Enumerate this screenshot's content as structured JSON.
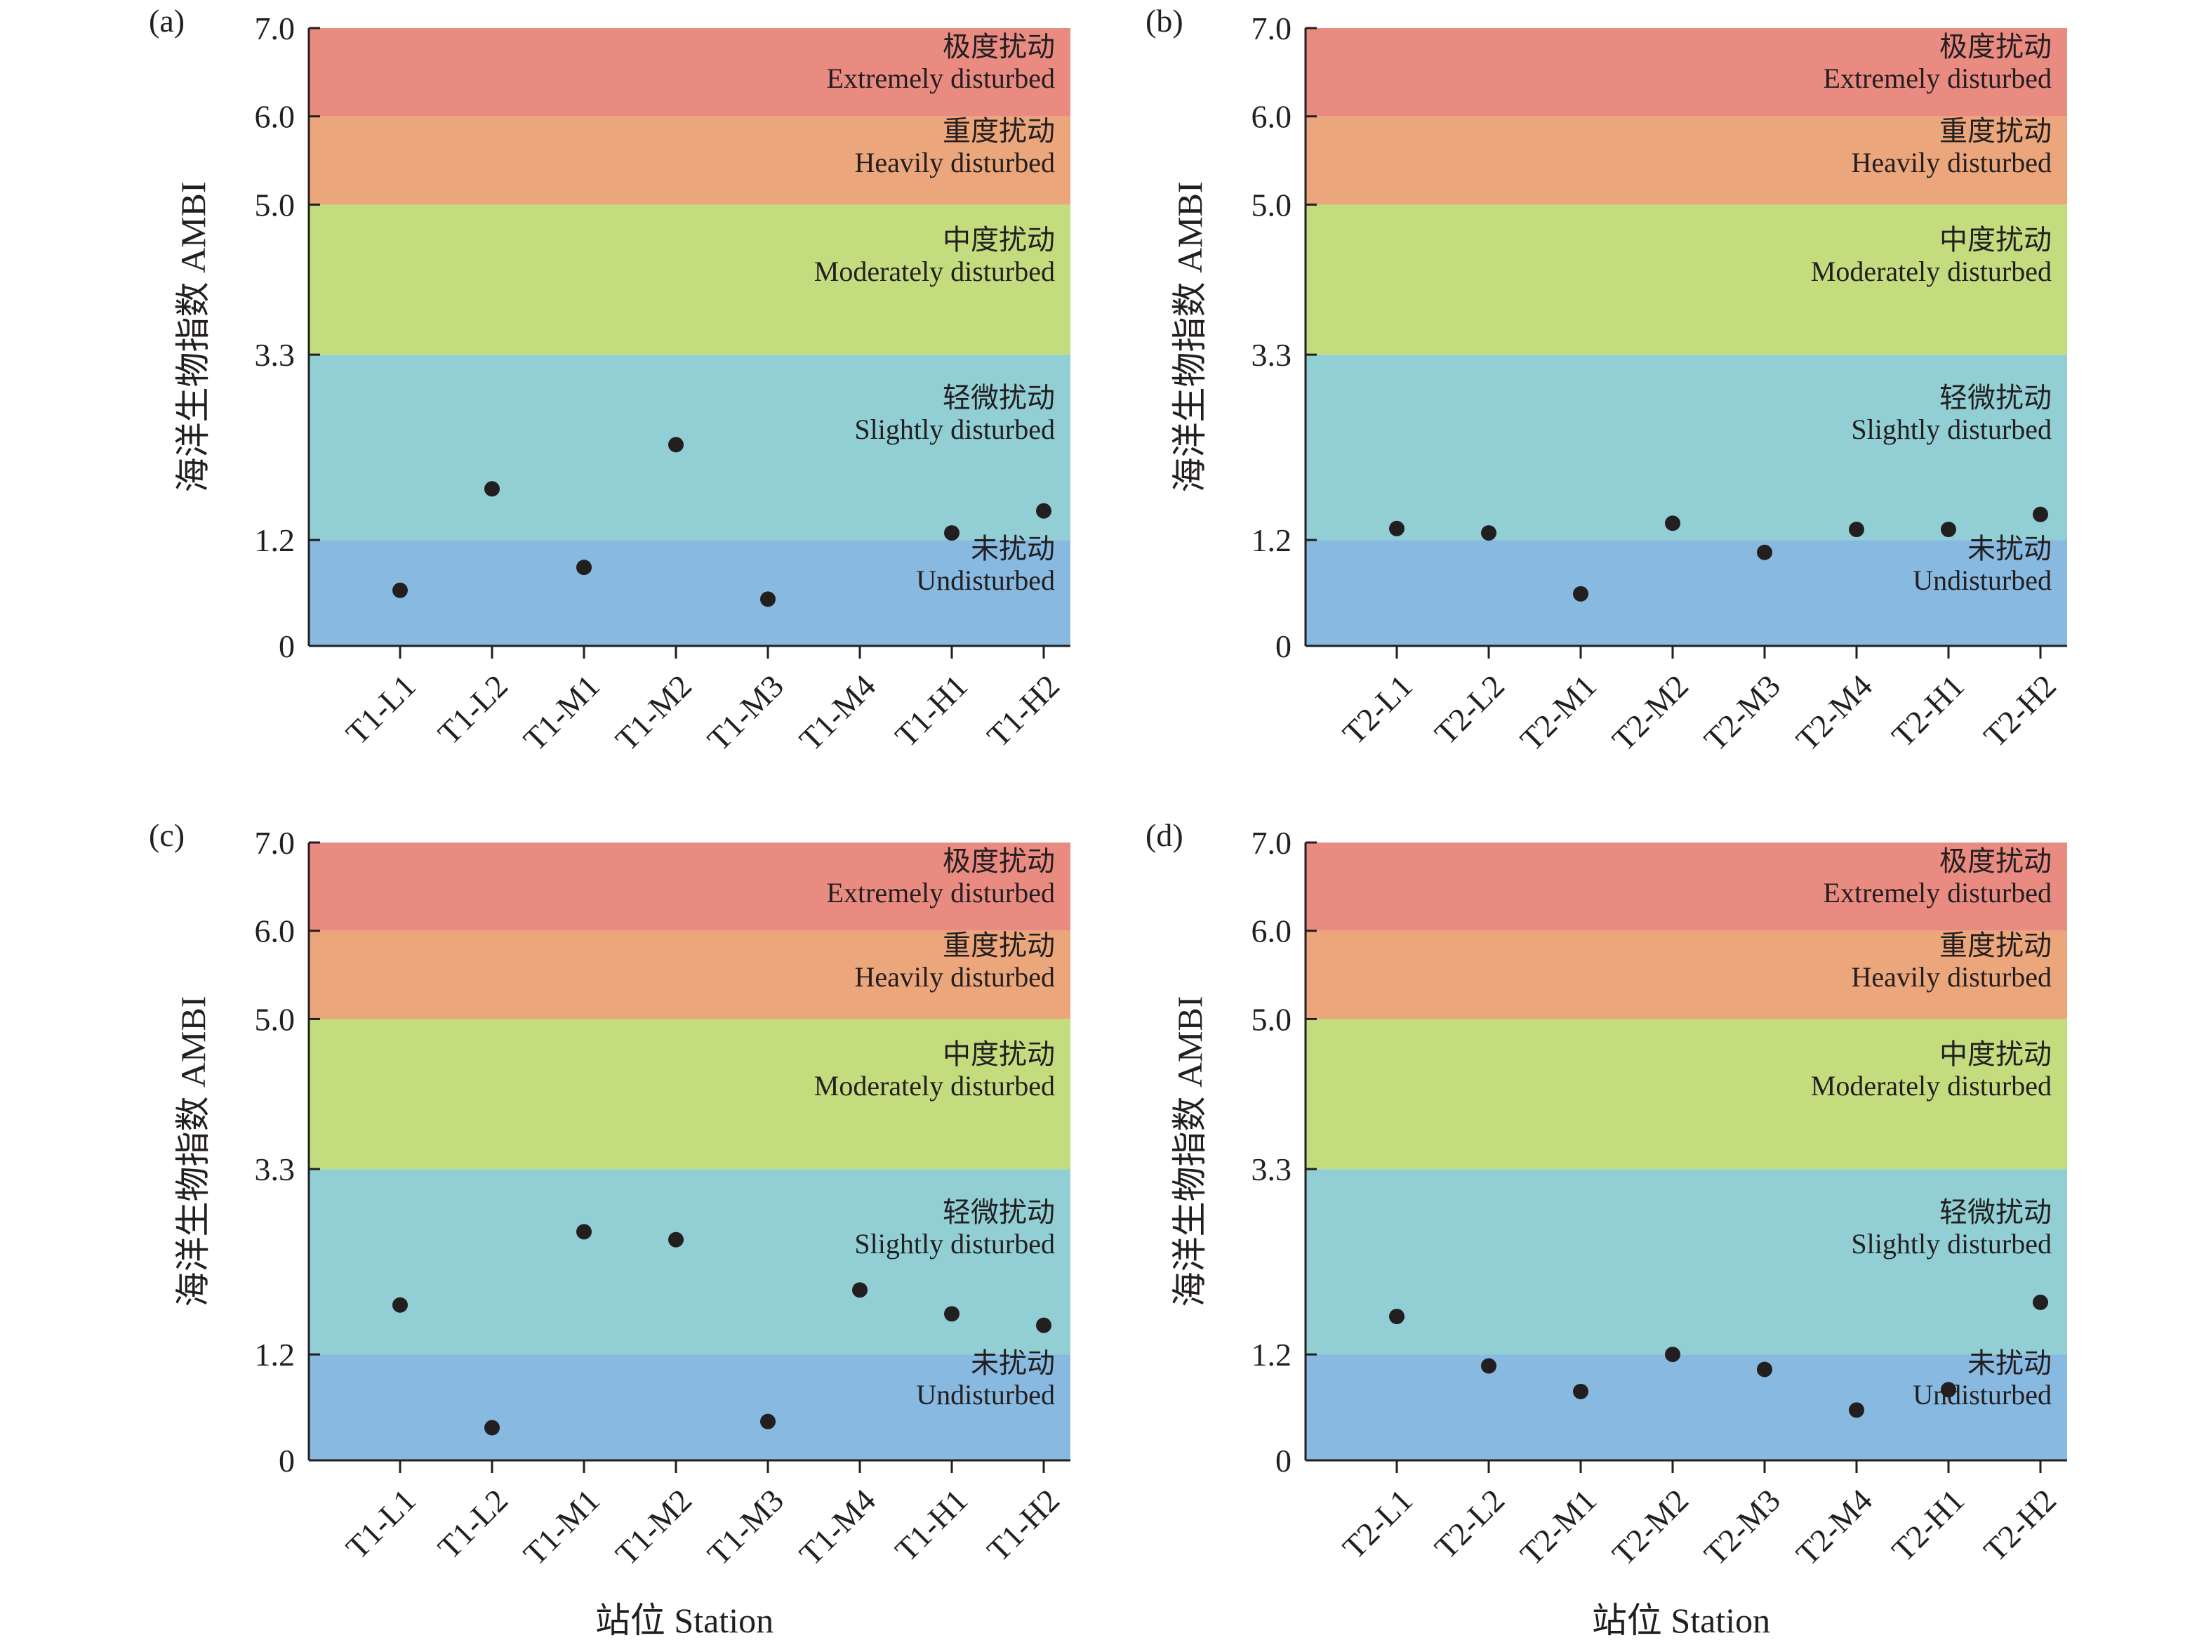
{
  "figure": {
    "y_axis_title": "海洋生物指数 AMBI",
    "x_axis_title": "站位 Station"
  },
  "zones": [
    {
      "key": "undisturbed",
      "from": 0,
      "to": 1.2,
      "cn": "未扰动",
      "en": "Undisturbed",
      "color": "#88b9e0"
    },
    {
      "key": "slightly",
      "from": 1.2,
      "to": 3.3,
      "cn": "轻微扰动",
      "en": "Slightly disturbed",
      "color": "#92cfd5"
    },
    {
      "key": "moderately",
      "from": 3.3,
      "to": 5.0,
      "cn": "中度扰动",
      "en": "Moderately disturbed",
      "color": "#c3dd7e"
    },
    {
      "key": "heavily",
      "from": 5.0,
      "to": 6.0,
      "cn": "重度扰动",
      "en": "Heavily disturbed",
      "color": "#eca67b"
    },
    {
      "key": "extremely",
      "from": 6.0,
      "to": 7.0,
      "cn": "极度扰动",
      "en": "Extremely disturbed",
      "color": "#ea8b82"
    }
  ],
  "chart_data": [
    {
      "type": "scatter",
      "panel": "(a)",
      "ylabel": "海洋生物指数 AMBI",
      "xlabel": "",
      "ylim": [
        0,
        7
      ],
      "yticks": [
        "0",
        "1.2",
        "3.3",
        "5.0",
        "6.0",
        "7.0"
      ],
      "categories": [
        "T1-L1",
        "T1-L2",
        "T1-M1",
        "T1-M2",
        "T1-M3",
        "T1-M4",
        "T1-H1",
        "T1-H2"
      ],
      "values": [
        0.63,
        1.78,
        0.89,
        2.28,
        0.53,
        null,
        1.28,
        1.53
      ]
    },
    {
      "type": "scatter",
      "panel": "(b)",
      "ylabel": "海洋生物指数 AMBI",
      "xlabel": "",
      "ylim": [
        0,
        7
      ],
      "yticks": [
        "0",
        "1.2",
        "3.3",
        "5.0",
        "6.0",
        "7.0"
      ],
      "categories": [
        "T2-L1",
        "T2-L2",
        "T2-M1",
        "T2-M2",
        "T2-M3",
        "T2-M4",
        "T2-H1",
        "T2-H2"
      ],
      "values": [
        1.33,
        1.28,
        0.59,
        1.39,
        1.06,
        1.32,
        1.32,
        1.49
      ]
    },
    {
      "type": "scatter",
      "panel": "(c)",
      "ylabel": "海洋生物指数 AMBI",
      "xlabel": "站位 Station",
      "ylim": [
        0,
        7
      ],
      "yticks": [
        "0",
        "1.2",
        "3.3",
        "5.0",
        "6.0",
        "7.0"
      ],
      "categories": [
        "T1-L1",
        "T1-L2",
        "T1-M1",
        "T1-M2",
        "T1-M3",
        "T1-M4",
        "T1-H1",
        "T1-H2"
      ],
      "values": [
        1.76,
        0.37,
        2.59,
        2.5,
        0.44,
        1.93,
        1.66,
        1.53
      ]
    },
    {
      "type": "scatter",
      "panel": "(d)",
      "ylabel": "海洋生物指数 AMBI",
      "xlabel": "站位 Station",
      "ylim": [
        0,
        7
      ],
      "yticks": [
        "0",
        "1.2",
        "3.3",
        "5.0",
        "6.0",
        "7.0"
      ],
      "categories": [
        "T2-L1",
        "T2-L2",
        "T2-M1",
        "T2-M2",
        "T2-M3",
        "T2-M4",
        "T2-H1",
        "T2-H2"
      ],
      "values": [
        1.63,
        1.07,
        0.78,
        1.2,
        1.03,
        0.57,
        0.8,
        1.79
      ]
    }
  ]
}
